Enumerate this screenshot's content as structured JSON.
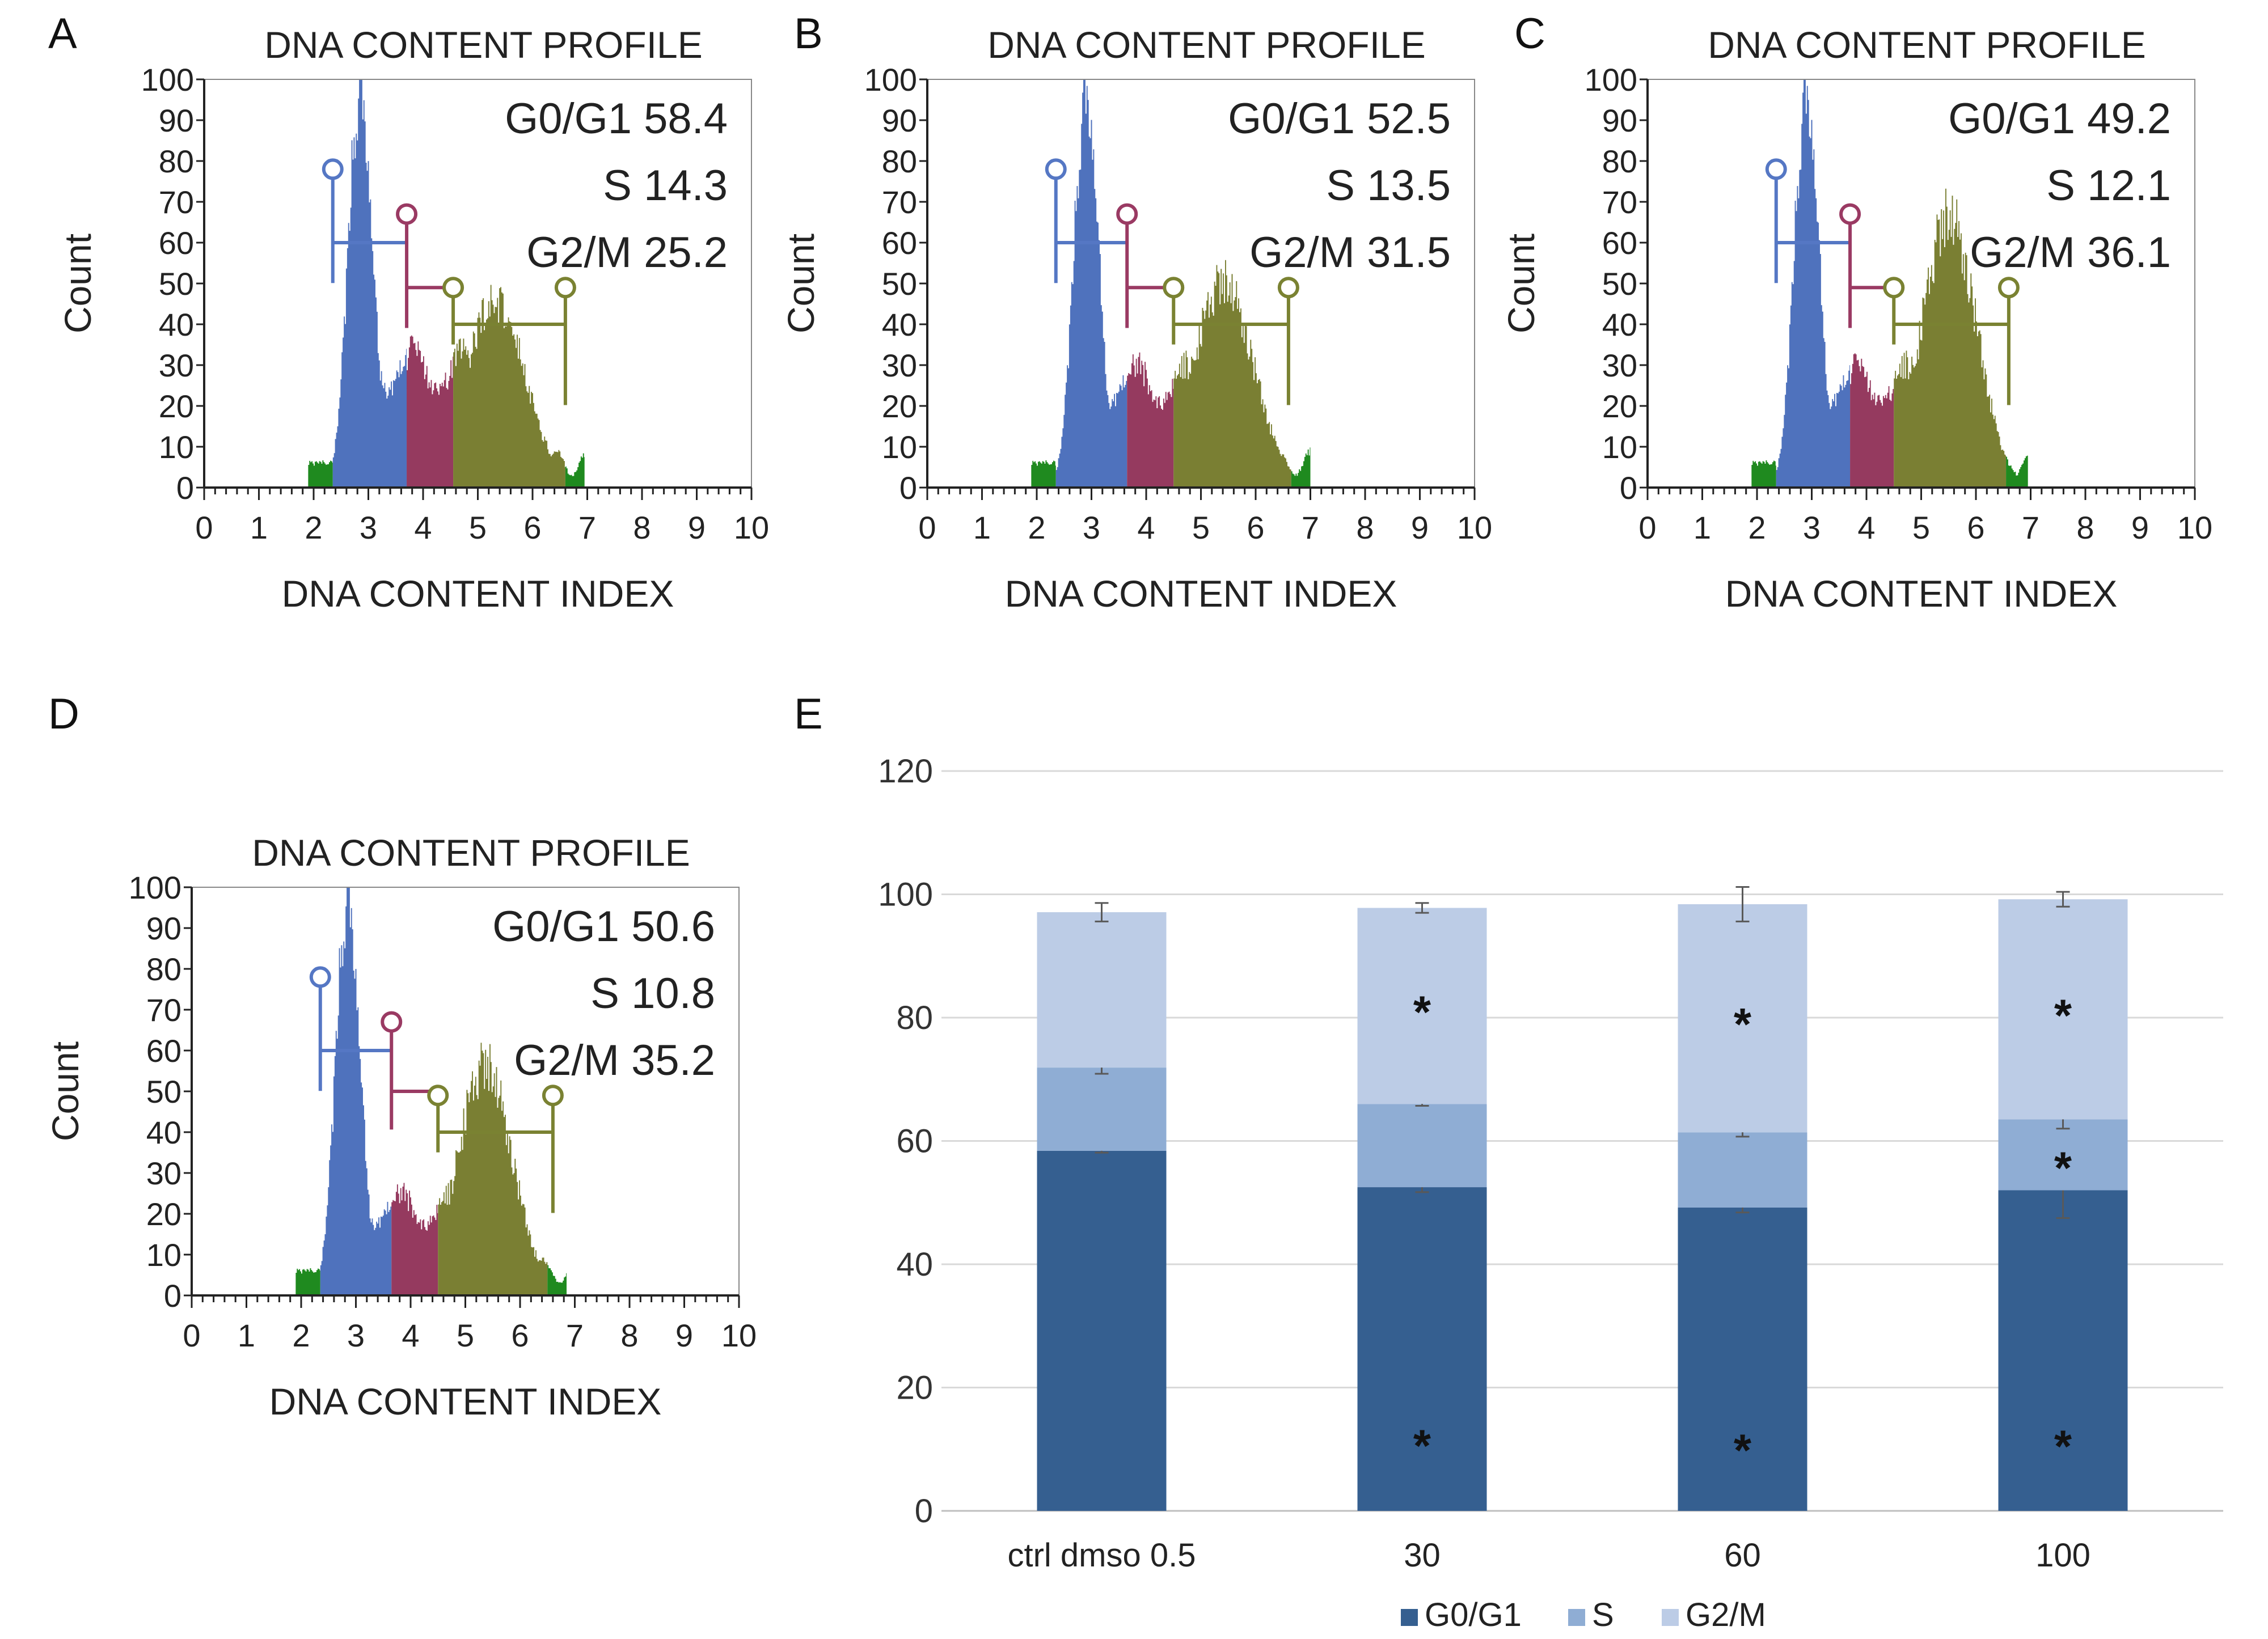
{
  "colors": {
    "g1": "#4f72bd",
    "s": "#953a5f",
    "g2m": "#7a7f33",
    "edge": "#1f8a1f",
    "gate_g1": "#5577c4",
    "gate_s": "#9a3a63",
    "gate_g2m": "#7a8232",
    "bar_g1": "#355f90",
    "bar_s": "#8fadd4",
    "bar_g2m": "#bccce6",
    "axis": "#222222",
    "grid": "#d9d9d9",
    "errorbar": "#595959"
  },
  "hist_common": {
    "title": "DNA CONTENT PROFILE",
    "xlabel": "DNA CONTENT INDEX",
    "ylabel": "Count",
    "y_ticks": [
      "0",
      "10",
      "20",
      "30",
      "40",
      "50",
      "60",
      "70",
      "80",
      "90",
      "100"
    ],
    "x_ticks": [
      "0",
      "1",
      "2",
      "3",
      "4",
      "5",
      "6",
      "7",
      "8",
      "9",
      "10"
    ],
    "xlim": [
      0,
      10
    ],
    "ylim": [
      0,
      100
    ]
  },
  "chart_data": [
    {
      "panel": "A",
      "type": "area",
      "title": "DNA CONTENT PROFILE",
      "xlabel": "DNA CONTENT INDEX",
      "ylabel": "Count",
      "stats": [
        {
          "label": "G0/G1",
          "value": "58.4"
        },
        {
          "label": "S",
          "value": "14.3"
        },
        {
          "label": "G2/M",
          "value": "25.2"
        }
      ],
      "profile": {
        "g1_peak": 2.85,
        "g1_height": 100,
        "g1_width": 0.22,
        "g2_peak": 5.3,
        "g2_height": 46,
        "g2_width": 0.55,
        "s_level": 34
      },
      "boundaries": [
        1.9,
        2.35,
        3.7,
        4.55,
        6.6,
        6.95
      ],
      "gates": [
        {
          "phase": "G0/G1",
          "start": 2.35,
          "end": 3.7,
          "y": 60,
          "marker_y": 78
        },
        {
          "phase": "S",
          "start": 3.7,
          "end": 4.55,
          "y": 49,
          "marker_y": 67
        },
        {
          "phase": "G2/M",
          "start": 4.55,
          "end": 6.6,
          "y": 40,
          "marker_y": 49
        }
      ]
    },
    {
      "panel": "B",
      "type": "area",
      "title": "DNA CONTENT PROFILE",
      "xlabel": "DNA CONTENT INDEX",
      "ylabel": "Count",
      "stats": [
        {
          "label": "G0/G1",
          "value": "52.5"
        },
        {
          "label": "S",
          "value": "13.5"
        },
        {
          "label": "G2/M",
          "value": "31.5"
        }
      ],
      "profile": {
        "g1_peak": 2.9,
        "g1_height": 100,
        "g1_width": 0.22,
        "g2_peak": 5.4,
        "g2_height": 50,
        "g2_width": 0.55,
        "s_level": 30
      },
      "boundaries": [
        1.9,
        2.35,
        3.65,
        4.5,
        6.65,
        7.0
      ],
      "gates": [
        {
          "phase": "G0/G1",
          "start": 2.35,
          "end": 3.65,
          "y": 60,
          "marker_y": 78
        },
        {
          "phase": "S",
          "start": 3.65,
          "end": 4.5,
          "y": 49,
          "marker_y": 67
        },
        {
          "phase": "G2/M",
          "start": 4.5,
          "end": 6.6,
          "y": 40,
          "marker_y": 49
        }
      ]
    },
    {
      "panel": "C",
      "type": "area",
      "title": "DNA CONTENT PROFILE",
      "xlabel": "DNA CONTENT INDEX",
      "ylabel": "Count",
      "stats": [
        {
          "label": "G0/G1",
          "value": "49.2"
        },
        {
          "label": "S",
          "value": "12.1"
        },
        {
          "label": "G2/M",
          "value": "36.1"
        }
      ],
      "profile": {
        "g1_peak": 2.9,
        "g1_height": 100,
        "g1_width": 0.22,
        "g2_peak": 5.5,
        "g2_height": 66,
        "g2_width": 0.5,
        "s_level": 30
      },
      "boundaries": [
        1.9,
        2.35,
        3.7,
        4.5,
        6.55,
        6.95
      ],
      "gates": [
        {
          "phase": "G0/G1",
          "start": 2.35,
          "end": 3.7,
          "y": 60,
          "marker_y": 78
        },
        {
          "phase": "S",
          "start": 3.7,
          "end": 4.5,
          "y": 49,
          "marker_y": 67
        },
        {
          "phase": "G2/M",
          "start": 4.5,
          "end": 6.6,
          "y": 40,
          "marker_y": 49
        }
      ]
    },
    {
      "panel": "D",
      "type": "area",
      "title": "DNA CONTENT PROFILE",
      "xlabel": "DNA CONTENT INDEX",
      "ylabel": "Count",
      "stats": [
        {
          "label": "G0/G1",
          "value": "50.6"
        },
        {
          "label": "S",
          "value": "10.8"
        },
        {
          "label": "G2/M",
          "value": "35.2"
        }
      ],
      "profile": {
        "g1_peak": 2.85,
        "g1_height": 100,
        "g1_width": 0.22,
        "g2_peak": 5.35,
        "g2_height": 56,
        "g2_width": 0.5,
        "s_level": 25
      },
      "boundaries": [
        1.9,
        2.35,
        3.65,
        4.5,
        6.5,
        6.85
      ],
      "gates": [
        {
          "phase": "G0/G1",
          "start": 2.35,
          "end": 3.65,
          "y": 60,
          "marker_y": 78
        },
        {
          "phase": "S",
          "start": 3.65,
          "end": 4.5,
          "y": 50,
          "marker_y": 67
        },
        {
          "phase": "G2/M",
          "start": 4.5,
          "end": 6.6,
          "y": 40,
          "marker_y": 49
        }
      ]
    },
    {
      "panel": "E",
      "type": "bar",
      "stacked": true,
      "title": "",
      "xlabel": "",
      "ylabel": "",
      "ylim": [
        0,
        120
      ],
      "y_ticks": [
        "0",
        "20",
        "40",
        "60",
        "80",
        "100",
        "120"
      ],
      "categories": [
        "ctrl dmso 0.5",
        "30",
        "60",
        "100"
      ],
      "series": [
        {
          "name": "G0/G1",
          "values": [
            58.4,
            52.5,
            49.2,
            52.0
          ],
          "errors": [
            0.3,
            0.8,
            0.8,
            4.5
          ],
          "significant": [
            false,
            true,
            true,
            true
          ]
        },
        {
          "name": "S",
          "values": [
            13.5,
            13.5,
            12.2,
            11.5
          ],
          "errors": [
            1.0,
            0.3,
            0.7,
            1.5
          ],
          "significant": [
            false,
            false,
            false,
            true
          ]
        },
        {
          "name": "G2/M",
          "values": [
            25.2,
            31.8,
            37.0,
            35.7
          ],
          "errors": [
            1.5,
            0.8,
            2.8,
            1.2
          ],
          "significant": [
            false,
            true,
            true,
            true
          ]
        }
      ],
      "star": "*",
      "legend": [
        "G0/G1",
        "S",
        "G2/M"
      ],
      "legend_position": "bottom"
    }
  ]
}
